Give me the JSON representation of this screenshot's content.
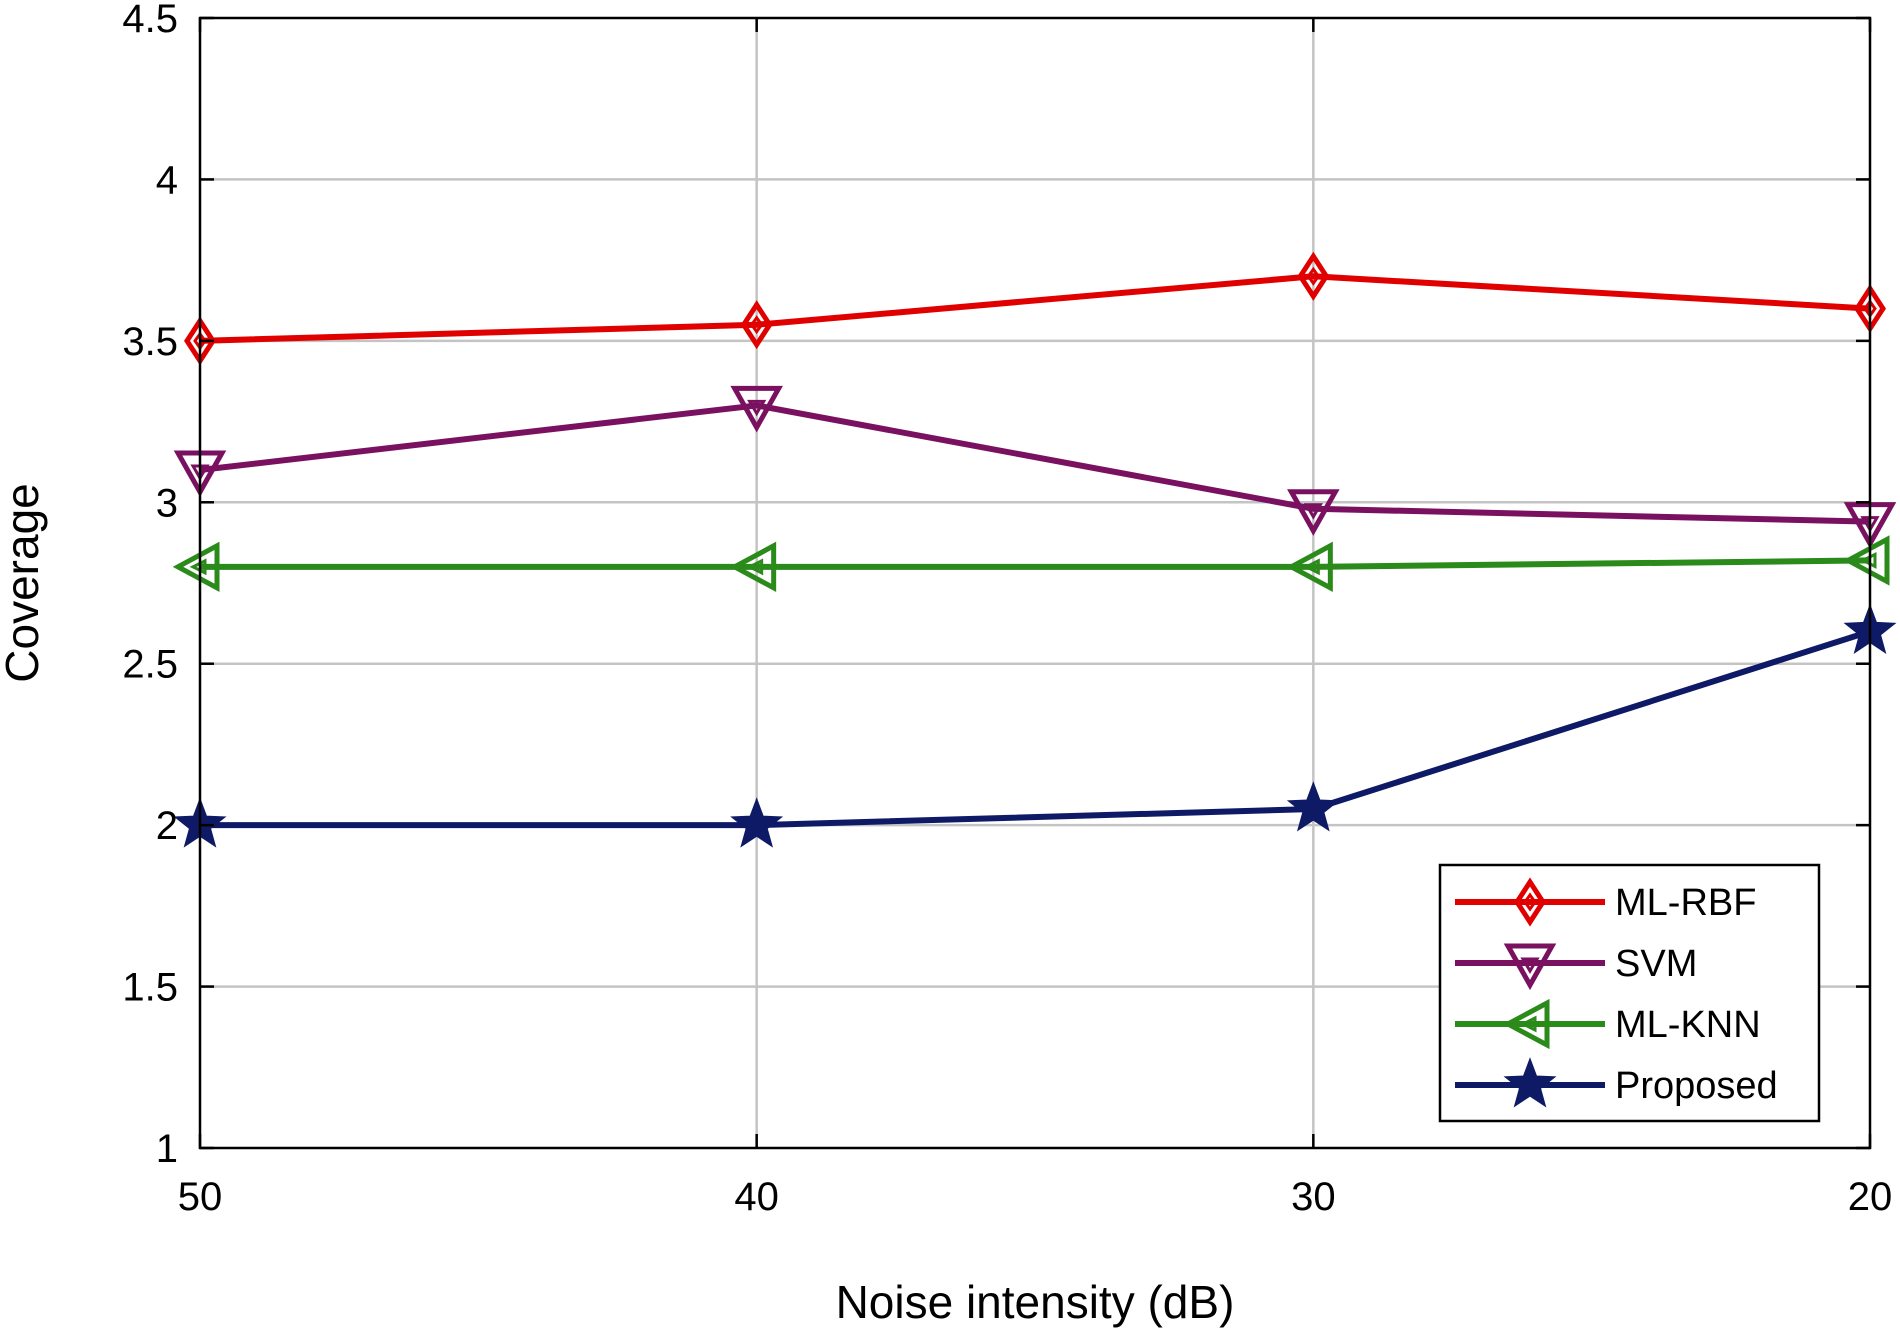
{
  "chart_data": {
    "type": "line",
    "title": "",
    "xlabel": "Noise intensity (dB)",
    "ylabel": "Coverage",
    "x": [
      50,
      40,
      30,
      20
    ],
    "x_tick_labels": [
      "50",
      "40",
      "30",
      "20"
    ],
    "y_tick_labels": [
      "1",
      "1.5",
      "2",
      "2.5",
      "3",
      "3.5",
      "4",
      "4.5"
    ],
    "y_ticks": [
      1,
      1.5,
      2,
      2.5,
      3,
      3.5,
      4,
      4.5
    ],
    "ylim": [
      1,
      4.5
    ],
    "x_reversed": true,
    "grid": true,
    "legend_position": "bottom-right",
    "series": [
      {
        "name": "ML-RBF",
        "values": [
          3.5,
          3.55,
          3.7,
          3.6
        ],
        "color": "#e00000",
        "marker": "diamond"
      },
      {
        "name": "SVM",
        "values": [
          3.1,
          3.3,
          2.98,
          2.94
        ],
        "color": "#7a1060",
        "marker": "triangle-down"
      },
      {
        "name": "ML-KNN",
        "values": [
          2.8,
          2.8,
          2.8,
          2.82
        ],
        "color": "#2a8a1a",
        "marker": "triangle-left"
      },
      {
        "name": "Proposed",
        "values": [
          2.0,
          2.0,
          2.05,
          2.6
        ],
        "color": "#0f1a66",
        "marker": "star"
      }
    ]
  }
}
